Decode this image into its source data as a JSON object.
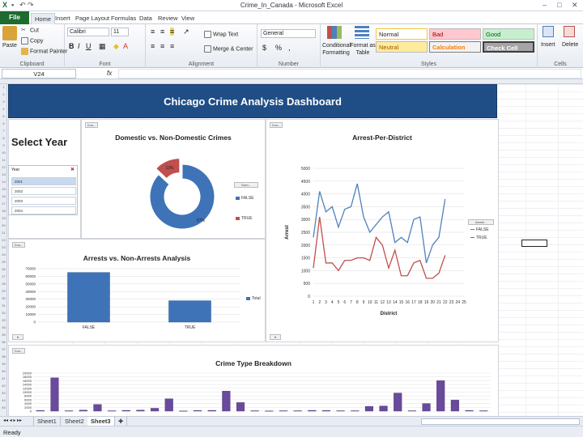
{
  "window": {
    "title": "Crime_In_Canada  -  Microsoft Excel"
  },
  "ribbon_tabs": [
    "File",
    "Home",
    "Insert",
    "Page Layout",
    "Formulas",
    "Data",
    "Review",
    "View"
  ],
  "clipboard": {
    "paste": "Paste",
    "cut": "Cut",
    "copy": "Copy",
    "format_painter": "Format Painter",
    "label": "Clipboard"
  },
  "font": {
    "name": "Calibri",
    "size": "11",
    "label": "Font"
  },
  "alignment": {
    "wrap": "Wrap Text",
    "merge": "Merge & Center",
    "label": "Alignment"
  },
  "number": {
    "format": "General",
    "label": "Number"
  },
  "styles": {
    "conditional": "Conditional Formatting",
    "format_table": "Format as Table",
    "normal": "Normal",
    "bad": "Bad",
    "good": "Good",
    "neutral": "Neutral",
    "calculation": "Calculation",
    "check_cell": "Check Cell",
    "label": "Styles"
  },
  "cells": {
    "insert": "Insert",
    "delete": "Delete",
    "label": "Cells"
  },
  "formula_bar": {
    "name_box": "V24",
    "fx": "fx"
  },
  "dashboard": {
    "title": "Chicago Crime Analysis Dashboard",
    "select_year": "Select Year",
    "slicer": {
      "header": "Year",
      "items": [
        "2001",
        "2002",
        "2003",
        "2004"
      ]
    },
    "filter_btn": "Cou..."
  },
  "sheets": [
    "Sheet1",
    "Sheet2",
    "Sheet3"
  ],
  "active_sheet": "Sheet3",
  "status": "Ready",
  "colors": {
    "banner": "#1f4e87",
    "excel_green": "#1d6b2e",
    "series_blue": "#4f81bd",
    "series_red": "#c0504d",
    "bar_blue": "#3f73b8",
    "bar_purple": "#6a4a9c"
  },
  "chart_data": [
    {
      "type": "pie",
      "title": "Domestic vs. Non-Domestic Crimes",
      "legend_title": "Dom...",
      "categories": [
        "FALSE",
        "TRUE"
      ],
      "values": [
        87,
        13
      ],
      "labels": [
        "87%",
        "13%"
      ],
      "legend": "right"
    },
    {
      "type": "line",
      "title": "Arrest-Per-District",
      "xlabel": "District",
      "ylabel": "Arrest",
      "legend_title": "Arrest...",
      "x": [
        1,
        2,
        3,
        4,
        5,
        6,
        7,
        8,
        9,
        10,
        11,
        12,
        13,
        14,
        15,
        16,
        17,
        18,
        19,
        20,
        21,
        22,
        23,
        24,
        25
      ],
      "ylim": [
        0,
        5000
      ],
      "yticks": [
        0,
        500,
        1000,
        1500,
        2000,
        2500,
        3000,
        3500,
        4000,
        4500,
        5000
      ],
      "series": [
        {
          "name": "FALSE",
          "values": [
            2300,
            4100,
            3300,
            3500,
            2700,
            3400,
            3500,
            4400,
            3100,
            2500,
            2800,
            3100,
            3300,
            2100,
            2300,
            2100,
            3000,
            3100,
            1300,
            2000,
            2300,
            3800,
            null,
            null,
            null
          ]
        },
        {
          "name": "TRUE",
          "values": [
            1100,
            3100,
            1300,
            1300,
            1000,
            1400,
            1400,
            1500,
            1500,
            1400,
            2300,
            2000,
            1100,
            1800,
            800,
            800,
            1300,
            1400,
            700,
            700,
            900,
            1600,
            null,
            null,
            null
          ]
        }
      ],
      "legend": "right"
    },
    {
      "type": "bar",
      "title": "Arrests vs. Non-Arrests Analysis",
      "categories": [
        "FALSE",
        "TRUE"
      ],
      "values": [
        65000,
        28000
      ],
      "ylim": [
        0,
        70000
      ],
      "yticks": [
        0,
        10000,
        20000,
        30000,
        40000,
        50000,
        60000,
        70000
      ],
      "series_name": "Total",
      "legend": "right"
    },
    {
      "type": "bar",
      "title": "Crime Type Breakdown",
      "ylim": [
        0,
        20000
      ],
      "yticks": [
        0,
        2000,
        4000,
        6000,
        8000,
        10000,
        12000,
        14000,
        16000,
        18000,
        20000
      ],
      "values": [
        300,
        17500,
        200,
        500,
        3500,
        200,
        400,
        500,
        1500,
        6500,
        100,
        300,
        400,
        10500,
        4500,
        200,
        100,
        200,
        200,
        400,
        300,
        200,
        200,
        2500,
        2700,
        9500,
        200,
        4000,
        16000,
        5800,
        300,
        200
      ]
    }
  ]
}
